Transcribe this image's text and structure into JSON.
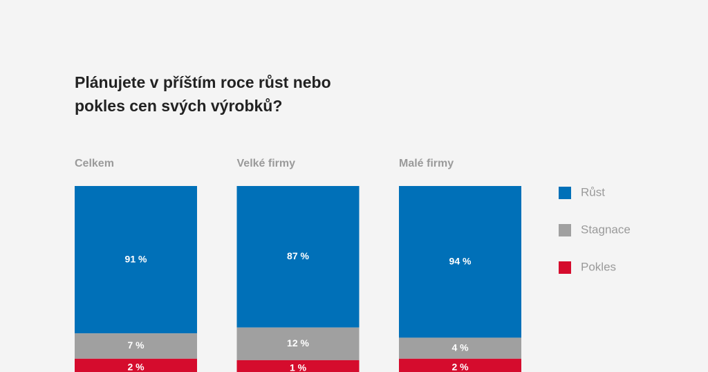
{
  "chart_data": {
    "type": "bar",
    "stacked": true,
    "title": "Plánujete v příštím roce růst nebo pokles cen svých výrobků?",
    "categories": [
      "Celkem",
      "Velké firmy",
      "Malé firmy"
    ],
    "series": [
      {
        "name": "Růst",
        "color": "#0070b8",
        "values": [
          91,
          87,
          94
        ],
        "value_labels": [
          "91 %",
          "87 %",
          "94 %"
        ]
      },
      {
        "name": "Stagnace",
        "color": "#a0a0a0",
        "values": [
          7,
          12,
          4
        ],
        "value_labels": [
          "7 %",
          "12 %",
          "4 %"
        ]
      },
      {
        "name": "Pokles",
        "color": "#d50c2d",
        "values": [
          2,
          1,
          2
        ],
        "value_labels": [
          "2 %",
          "1 %",
          "2 %"
        ]
      }
    ]
  }
}
